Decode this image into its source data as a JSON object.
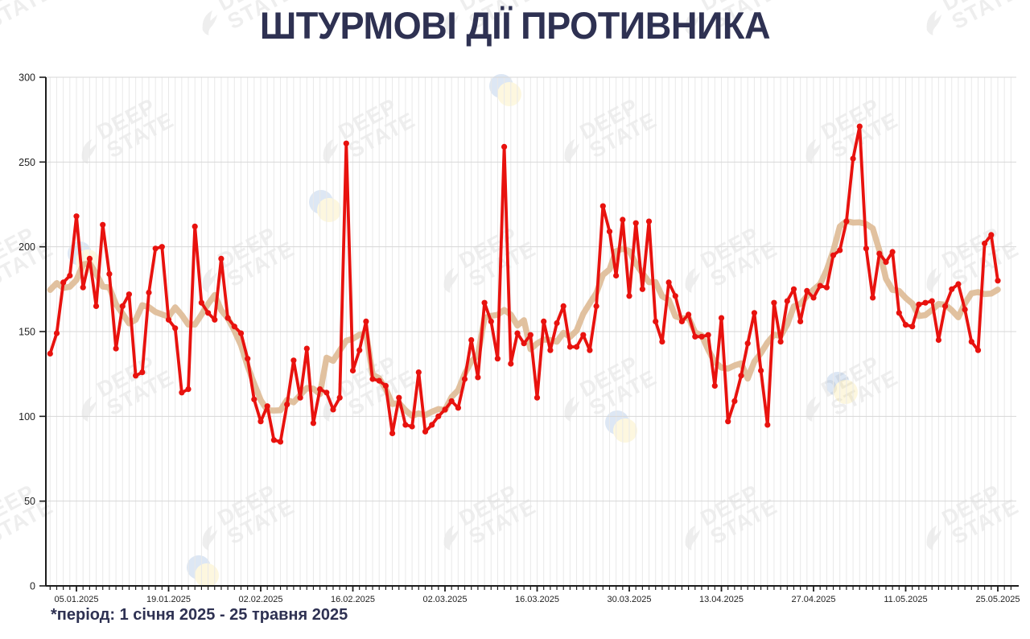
{
  "title": "ШТУРМОВІ ДІЇ ПРОТИВНИКА",
  "footnote": "*період: 1 січня 2025 - 25 травня 2025",
  "watermark": {
    "line1": "DEEP",
    "line2": "STATE"
  },
  "colors": {
    "series": "#e8120e",
    "moving_avg": "#deba95",
    "title": "#2e3152",
    "grid_minor": "#e9e9e9",
    "grid_major": "#d7d7d7",
    "axis": "#1c1c1c",
    "tick_label": "#1f1f1f"
  },
  "chart_data": {
    "type": "line",
    "title": "ШТУРМОВІ ДІЇ ПРОТИВНИКА",
    "period_start": "01.01.2025",
    "period_end": "25.05.2025",
    "ylim": [
      0,
      300
    ],
    "y_ticks": [
      0,
      50,
      100,
      150,
      200,
      250,
      300
    ],
    "x_tick_labels": [
      "05.01.2025",
      "19.01.2025",
      "02.02.2025",
      "16.02.2025",
      "02.03.2025",
      "16.03.2025",
      "30.03.2025",
      "13.04.2025",
      "27.04.2025",
      "11.05.2025",
      "25.05.2025"
    ],
    "x_tick_day_indices": [
      4,
      18,
      32,
      46,
      60,
      74,
      88,
      102,
      116,
      130,
      144
    ],
    "grid": true,
    "legend_position": "none",
    "series": [
      {
        "name": "daily-assaults",
        "style": "line-with-markers",
        "values": [
          137,
          149,
          179,
          183,
          218,
          176,
          193,
          165,
          213,
          184,
          140,
          165,
          172,
          124,
          126,
          173,
          199,
          200,
          157,
          152,
          114,
          116,
          212,
          167,
          161,
          157,
          193,
          158,
          153,
          149,
          134,
          110,
          97,
          106,
          86,
          85,
          107,
          133,
          111,
          140,
          96,
          116,
          114,
          104,
          111,
          261,
          127,
          139,
          156,
          122,
          121,
          118,
          90,
          111,
          95,
          94,
          126,
          91,
          95,
          100,
          104,
          109,
          105,
          122,
          145,
          123,
          167,
          156,
          134,
          259,
          131,
          149,
          143,
          148,
          111,
          156,
          139,
          155,
          165,
          141,
          141,
          148,
          139,
          165,
          224,
          209,
          183,
          216,
          171,
          214,
          175,
          215,
          156,
          144,
          179,
          171,
          156,
          160,
          147,
          147,
          148,
          118,
          158,
          97,
          109,
          124,
          143,
          161,
          127,
          95,
          167,
          144,
          168,
          175,
          156,
          174,
          170,
          177,
          176,
          195,
          198,
          215,
          252,
          271,
          199,
          170,
          196,
          191,
          197,
          161,
          154,
          153,
          166,
          167,
          168,
          145,
          165,
          175,
          178,
          163,
          144,
          139,
          202,
          207,
          180
        ]
      },
      {
        "name": "7-day-moving-average",
        "style": "smooth-thick-line",
        "derived": "rolling_mean_centered_7",
        "edge_padding_before": [
          190,
          196,
          188
        ],
        "edge_padding_after": [
          170,
          165,
          160
        ]
      }
    ]
  }
}
